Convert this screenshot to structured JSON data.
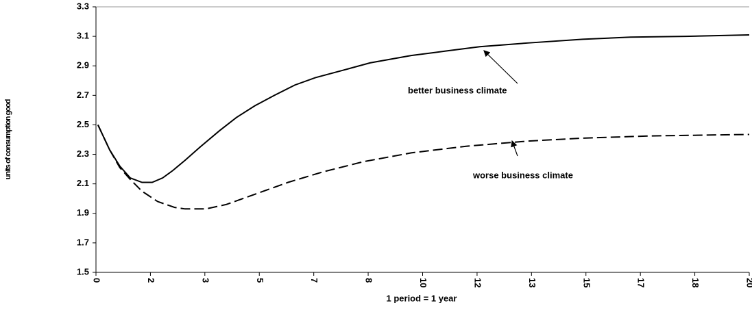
{
  "chart_data": {
    "type": "line",
    "y_label": "units of consumption good",
    "x_label": "1 period = 1 year",
    "annotations": [
      "better business climate",
      "worse business climate"
    ],
    "xlim": [
      0,
      20
    ],
    "xticks": [
      0,
      {
        "value": 1.667,
        "label": "2"
      },
      {
        "value": 3.333,
        "label": "3"
      },
      5,
      {
        "value": 6.667,
        "label": "7"
      },
      {
        "value": 8.333,
        "label": "8"
      },
      10,
      {
        "value": 11.667,
        "label": "12"
      },
      {
        "value": 13.333,
        "label": "13"
      },
      15,
      {
        "value": 16.667,
        "label": "17"
      },
      {
        "value": 18.333,
        "label": "18"
      },
      20
    ],
    "ylim": [
      1.5,
      3.3
    ],
    "yticks": [
      1.5,
      1.7,
      1.9,
      2.1,
      2.3,
      2.5,
      2.7,
      2.9,
      3.1,
      3.3
    ],
    "series": [
      {
        "color": "#000000",
        "dash": false,
        "x": [
          0.06,
          0.42,
          0.73,
          1.05,
          1.41,
          1.72,
          2.04,
          2.35,
          2.73,
          3.19,
          3.78,
          4.3,
          4.87,
          5.46,
          6.09,
          6.72,
          7.56,
          8.39,
          9.65,
          10.7,
          11.75,
          13.22,
          14.9,
          16.37,
          18.05,
          20
        ],
        "values": [
          2.5,
          2.33,
          2.22,
          2.14,
          2.11,
          2.11,
          2.14,
          2.19,
          2.26,
          2.35,
          2.46,
          2.55,
          2.63,
          2.7,
          2.77,
          2.82,
          2.87,
          2.92,
          2.97,
          3.0,
          3.03,
          3.055,
          3.08,
          3.095,
          3.1,
          3.11
        ]
      },
      {
        "color": "#000000",
        "dash": true,
        "x": [
          0.06,
          0.42,
          0.73,
          1.05,
          1.41,
          1.89,
          2.41,
          2.73,
          3.36,
          3.99,
          4.87,
          5.88,
          6.93,
          8.18,
          9.65,
          11.33,
          13.22,
          14.9,
          17.0,
          20
        ],
        "values": [
          2.5,
          2.33,
          2.21,
          2.13,
          2.05,
          1.98,
          1.94,
          1.93,
          1.93,
          1.96,
          2.03,
          2.11,
          2.18,
          2.25,
          2.31,
          2.355,
          2.39,
          2.41,
          2.425,
          2.435
        ]
      }
    ]
  }
}
